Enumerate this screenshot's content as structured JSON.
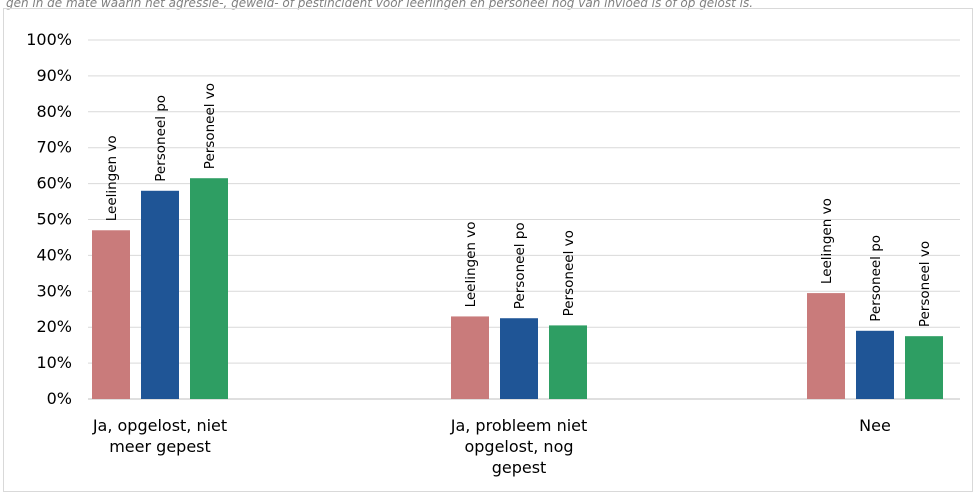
{
  "caption": "gen in de mate waarin het agressie-, geweld- of pestincident voor leerlingen en personeel nog van invloed is of op gelost is.",
  "chart_data": {
    "type": "bar",
    "categories": [
      [
        "Ja, opgelost, niet",
        "meer gepest"
      ],
      [
        "Ja, probleem niet",
        "opgelost, nog",
        "gepest"
      ],
      [
        "Nee"
      ]
    ],
    "series": [
      {
        "name": "Leelingen vo",
        "color": "#c97b7b",
        "values": [
          47,
          23,
          29.5
        ]
      },
      {
        "name": "Personeel po",
        "color": "#1f5596",
        "values": [
          58,
          22.5,
          19
        ]
      },
      {
        "name": "Personeel vo",
        "color": "#2e9e63",
        "values": [
          61.5,
          20.5,
          17.5
        ]
      }
    ],
    "ylim": [
      0,
      100
    ],
    "yticks": [
      "0%",
      "10%",
      "20%",
      "30%",
      "40%",
      "50%",
      "60%",
      "70%",
      "80%",
      "90%",
      "100%"
    ],
    "grid": true,
    "gridColor": "#d9d9d9",
    "legend": "none (data labels above bars)"
  }
}
